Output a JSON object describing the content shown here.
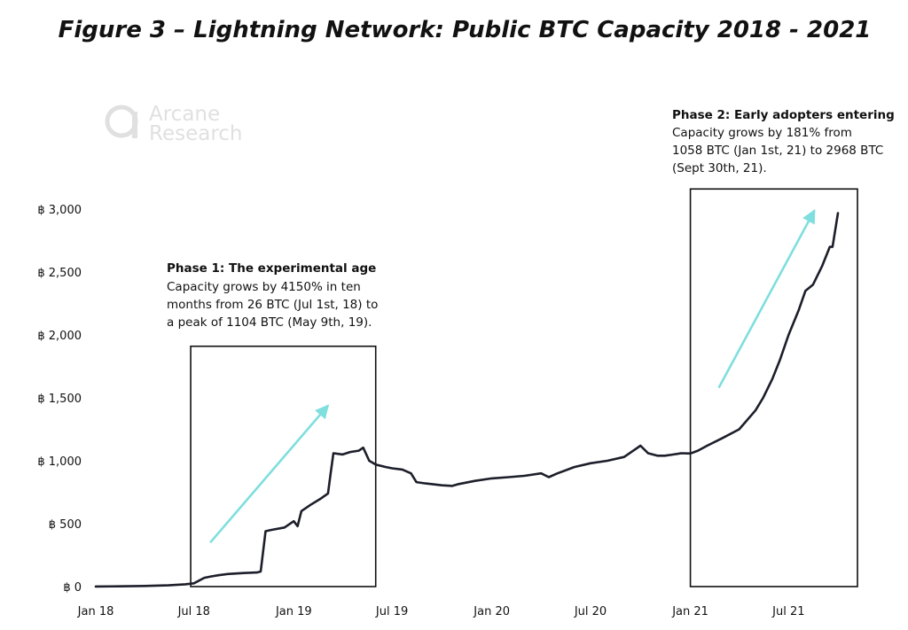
{
  "chart_data": {
    "type": "line",
    "title": "Figure 3 – Lightning Network: Public BTC Capacity 2018 - 2021",
    "xlabel": "",
    "ylabel": "",
    "ylim": [
      0,
      3000
    ],
    "xlim": [
      "2018-01-01",
      "2021-11-15"
    ],
    "y_ticks": [
      {
        "value": 0,
        "label": "฿ 0"
      },
      {
        "value": 500,
        "label": "฿ 500"
      },
      {
        "value": 1000,
        "label": "฿ 1,000"
      },
      {
        "value": 1500,
        "label": "฿ 1,500"
      },
      {
        "value": 2000,
        "label": "฿ 2,000"
      },
      {
        "value": 2500,
        "label": "฿ 2,500"
      },
      {
        "value": 3000,
        "label": "฿ 3,000"
      }
    ],
    "x_ticks": [
      {
        "date": "2018-01-01",
        "label": "Jan 18"
      },
      {
        "date": "2018-07-01",
        "label": "Jul 18"
      },
      {
        "date": "2019-01-01",
        "label": "Jan 19"
      },
      {
        "date": "2019-07-01",
        "label": "Jul 19"
      },
      {
        "date": "2020-01-01",
        "label": "Jan 20"
      },
      {
        "date": "2020-07-01",
        "label": "Jul 20"
      },
      {
        "date": "2021-01-01",
        "label": "Jan 21"
      },
      {
        "date": "2021-07-01",
        "label": "Jul 21"
      }
    ],
    "grid": false,
    "legend": "none",
    "line_color": "#1c1e2a",
    "series": [
      {
        "x": [
          "2018-01-01",
          "2018-02-15",
          "2018-04-01",
          "2018-05-15",
          "2018-06-15",
          "2018-07-01",
          "2018-07-20",
          "2018-08-01",
          "2018-08-15",
          "2018-09-01",
          "2018-10-01",
          "2018-10-25",
          "2018-11-01",
          "2018-11-10",
          "2018-11-20",
          "2018-12-15",
          "2019-01-01",
          "2019-01-08",
          "2019-01-15",
          "2019-02-01",
          "2019-02-20",
          "2019-03-05",
          "2019-03-10",
          "2019-03-15",
          "2019-04-01",
          "2019-04-15",
          "2019-05-01",
          "2019-05-09",
          "2019-05-20",
          "2019-06-01",
          "2019-06-20",
          "2019-07-01",
          "2019-07-20",
          "2019-08-05",
          "2019-08-15",
          "2019-09-01",
          "2019-10-01",
          "2019-10-20",
          "2019-11-01",
          "2019-12-01",
          "2020-01-01",
          "2020-02-01",
          "2020-03-01",
          "2020-04-01",
          "2020-04-15",
          "2020-05-01",
          "2020-06-01",
          "2020-07-01",
          "2020-08-01",
          "2020-09-01",
          "2020-10-01",
          "2020-10-15",
          "2020-11-01",
          "2020-11-15",
          "2020-12-01",
          "2020-12-15",
          "2021-01-01",
          "2021-01-15",
          "2021-02-01",
          "2021-03-01",
          "2021-04-01",
          "2021-05-01",
          "2021-05-15",
          "2021-06-01",
          "2021-06-15",
          "2021-07-01",
          "2021-07-20",
          "2021-08-01",
          "2021-08-15",
          "2021-09-01",
          "2021-09-15",
          "2021-09-20",
          "2021-09-30"
        ],
        "values": [
          1,
          2,
          5,
          10,
          18,
          26,
          70,
          80,
          90,
          100,
          108,
          112,
          120,
          440,
          450,
          470,
          520,
          480,
          600,
          650,
          700,
          740,
          900,
          1060,
          1050,
          1070,
          1080,
          1104,
          1000,
          970,
          950,
          940,
          930,
          900,
          830,
          820,
          805,
          800,
          815,
          840,
          860,
          870,
          880,
          900,
          870,
          900,
          950,
          980,
          1000,
          1030,
          1120,
          1060,
          1040,
          1040,
          1050,
          1060,
          1058,
          1080,
          1120,
          1180,
          1250,
          1400,
          1500,
          1650,
          1800,
          2000,
          2200,
          2350,
          2400,
          2550,
          2700,
          2700,
          2968
        ]
      }
    ],
    "annotations": [
      {
        "name": "phase-1",
        "heading": "Phase 1: The experimental age",
        "lines": [
          "Capacity grows by 4150% in ten",
          "months from 26 BTC (Jul 1st, 18) to",
          "a peak of 1104 BTC (May 9th, 19)."
        ],
        "box_range": [
          "2018-06-25",
          "2019-06-01"
        ],
        "arrow_color": "#7fdede"
      },
      {
        "name": "phase-2",
        "heading": "Phase 2: Early adopters entering",
        "lines": [
          "Capacity grows by 181% from",
          "1058 BTC (Jan 1st, 21) to 2968 BTC",
          "(Sept 30th, 21)."
        ],
        "box_range": [
          "2021-01-01",
          "2021-11-05"
        ],
        "arrow_color": "#7fdede"
      }
    ]
  },
  "watermark": {
    "line1": "Arcane",
    "line2": "Research"
  }
}
